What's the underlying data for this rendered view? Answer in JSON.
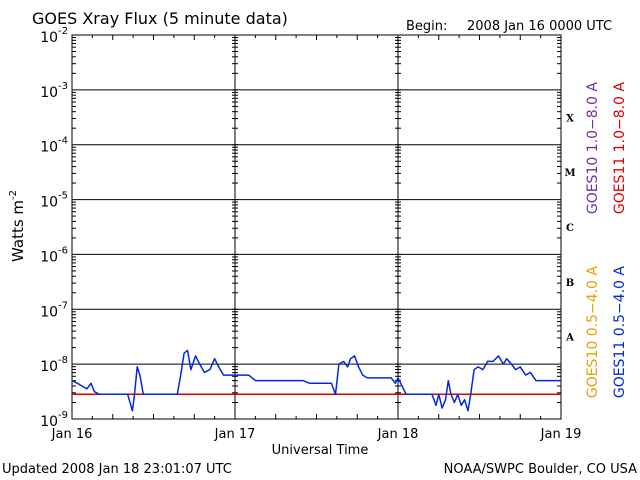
{
  "header": {
    "title": "GOES Xray Flux (5 minute data)",
    "begin_label": "Begin:",
    "begin_value": "2008 Jan 16 0000 UTC"
  },
  "footer": {
    "updated": "Updated 2008 Jan 18 23:01:07 UTC",
    "credit": "NOAA/SWPC Boulder, CO USA"
  },
  "chart_data": {
    "type": "line",
    "title": "GOES Xray Flux (5 minute data)",
    "xlabel": "Universal Time",
    "ylabel": "Watts m",
    "ylabel_sup": "-2",
    "x_unit": "hours since 2008 Jan 16 0000 UTC",
    "xlim": [
      0,
      72
    ],
    "ylim_log10": [
      -9,
      -2
    ],
    "y_scale": "log",
    "x_ticks": [
      {
        "x": 0,
        "label": "Jan 16"
      },
      {
        "x": 24,
        "label": "Jan 17"
      },
      {
        "x": 48,
        "label": "Jan 18"
      },
      {
        "x": 72,
        "label": "Jan 19"
      }
    ],
    "y_ticks": [
      {
        "exp": -2,
        "base": "10",
        "sup": "-2"
      },
      {
        "exp": -3,
        "base": "10",
        "sup": "-3"
      },
      {
        "exp": -4,
        "base": "10",
        "sup": "-4"
      },
      {
        "exp": -5,
        "base": "10",
        "sup": "-5"
      },
      {
        "exp": -6,
        "base": "10",
        "sup": "-6"
      },
      {
        "exp": -7,
        "base": "10",
        "sup": "-7"
      },
      {
        "exp": -8,
        "base": "10",
        "sup": "-8"
      },
      {
        "exp": -9,
        "base": "10",
        "sup": "-9"
      }
    ],
    "flare_classes": [
      {
        "label": "X",
        "exp": -3.5
      },
      {
        "label": "M",
        "exp": -4.5
      },
      {
        "label": "C",
        "exp": -5.5
      },
      {
        "label": "B",
        "exp": -6.5
      },
      {
        "label": "A",
        "exp": -7.5
      }
    ],
    "legend": {
      "placement": "right",
      "entries": [
        {
          "name": "GOES10 1.0−8.0 A",
          "color": "#7030a0"
        },
        {
          "name": "GOES11 1.0−8.0 A",
          "color": "#e00000"
        },
        {
          "name": "GOES10 0.5−4.0 A",
          "color": "#e8a000"
        },
        {
          "name": "GOES11 0.5−4.0 A",
          "color": "#0028e0"
        }
      ]
    },
    "series": [
      {
        "name": "GOES11 1.0−8.0 A",
        "color": "#e00000",
        "points": [
          [
            0,
            -8.55
          ],
          [
            72,
            -8.55
          ]
        ]
      },
      {
        "name": "GOES11 0.5−4.0 A",
        "color": "#0028e0",
        "points": [
          [
            0,
            -8.3
          ],
          [
            0.8,
            -8.35
          ],
          [
            1.5,
            -8.4
          ],
          [
            2.2,
            -8.45
          ],
          [
            2.8,
            -8.35
          ],
          [
            3.3,
            -8.5
          ],
          [
            4,
            -8.55
          ],
          [
            6,
            -8.55
          ],
          [
            7.5,
            -8.55
          ],
          [
            8.2,
            -8.55
          ],
          [
            8.9,
            -8.85
          ],
          [
            9.2,
            -8.55
          ],
          [
            9.6,
            -8.05
          ],
          [
            10,
            -8.2
          ],
          [
            10.5,
            -8.55
          ],
          [
            13,
            -8.55
          ],
          [
            15.5,
            -8.55
          ],
          [
            16,
            -8.2
          ],
          [
            16.5,
            -7.8
          ],
          [
            17,
            -7.75
          ],
          [
            17.5,
            -8.1
          ],
          [
            18.2,
            -7.85
          ],
          [
            18.8,
            -8.0
          ],
          [
            19.5,
            -8.15
          ],
          [
            20.3,
            -8.1
          ],
          [
            21,
            -7.9
          ],
          [
            21.6,
            -8.05
          ],
          [
            22.3,
            -8.2
          ],
          [
            24,
            -8.2
          ],
          [
            26,
            -8.2
          ],
          [
            27,
            -8.3
          ],
          [
            28,
            -8.3
          ],
          [
            30,
            -8.3
          ],
          [
            32,
            -8.3
          ],
          [
            34,
            -8.3
          ],
          [
            35,
            -8.35
          ],
          [
            36,
            -8.35
          ],
          [
            38.2,
            -8.35
          ],
          [
            38.8,
            -8.55
          ],
          [
            39.3,
            -8.0
          ],
          [
            40,
            -7.95
          ],
          [
            40.6,
            -8.05
          ],
          [
            41,
            -7.9
          ],
          [
            41.6,
            -7.85
          ],
          [
            42.2,
            -8.05
          ],
          [
            42.8,
            -8.2
          ],
          [
            43.5,
            -8.25
          ],
          [
            44.5,
            -8.25
          ],
          [
            46,
            -8.25
          ],
          [
            47,
            -8.25
          ],
          [
            47.6,
            -8.35
          ],
          [
            48,
            -8.25
          ],
          [
            48.6,
            -8.4
          ],
          [
            49.2,
            -8.55
          ],
          [
            51,
            -8.55
          ],
          [
            52,
            -8.55
          ],
          [
            53,
            -8.55
          ],
          [
            53.6,
            -8.75
          ],
          [
            54,
            -8.55
          ],
          [
            54.5,
            -8.8
          ],
          [
            55,
            -8.65
          ],
          [
            55.4,
            -8.3
          ],
          [
            55.8,
            -8.55
          ],
          [
            56.3,
            -8.7
          ],
          [
            56.8,
            -8.55
          ],
          [
            57.3,
            -8.75
          ],
          [
            57.8,
            -8.65
          ],
          [
            58.3,
            -8.85
          ],
          [
            58.7,
            -8.55
          ],
          [
            59.2,
            -8.1
          ],
          [
            59.8,
            -8.05
          ],
          [
            60.5,
            -8.1
          ],
          [
            61.2,
            -7.95
          ],
          [
            62,
            -7.95
          ],
          [
            62.8,
            -7.85
          ],
          [
            63.5,
            -8.0
          ],
          [
            64,
            -7.9
          ],
          [
            64.7,
            -8.0
          ],
          [
            65.3,
            -8.1
          ],
          [
            66,
            -8.05
          ],
          [
            66.8,
            -8.2
          ],
          [
            67.5,
            -8.15
          ],
          [
            68.3,
            -8.3
          ],
          [
            70,
            -8.3
          ],
          [
            72,
            -8.3
          ]
        ]
      }
    ]
  }
}
